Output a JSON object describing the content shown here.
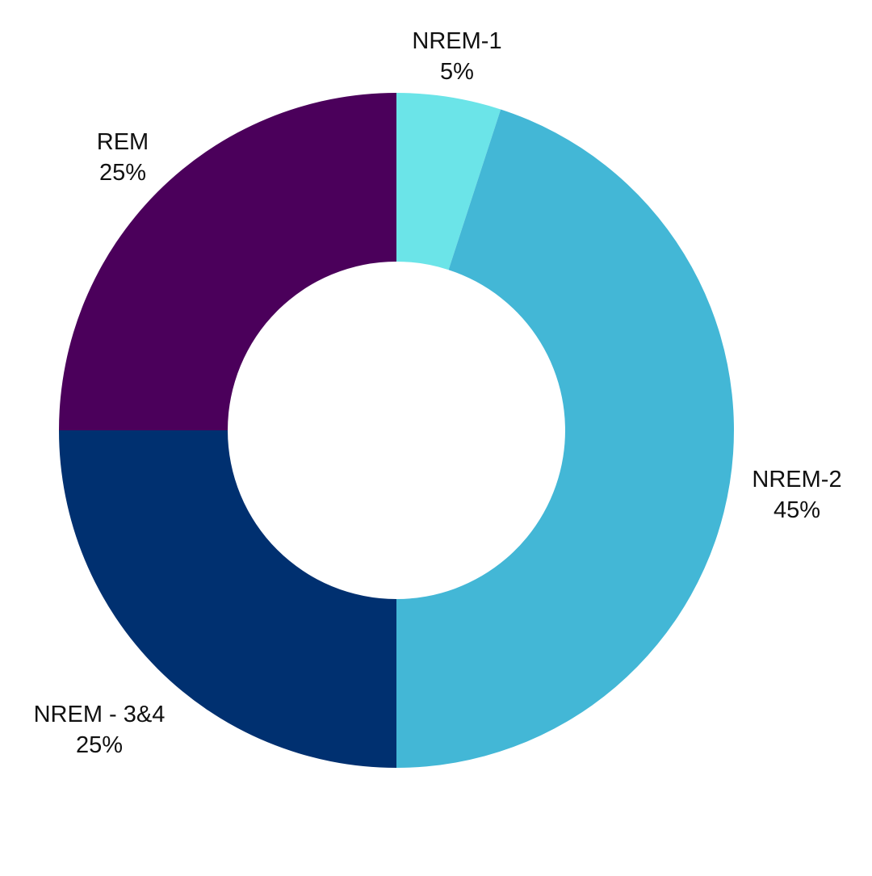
{
  "chart_data": {
    "type": "pie",
    "donut": true,
    "start_angle": "12 o'clock, clockwise",
    "legend": "none",
    "slices": [
      {
        "label": "NREM-1",
        "value": 5,
        "value_label": "5%",
        "color": "#6be4e8"
      },
      {
        "label": "NREM-2",
        "value": 45,
        "value_label": "45%",
        "color": "#43b7d6"
      },
      {
        "label": "NREM - 3&4",
        "value": 25,
        "value_label": "25%",
        "color": "#003070"
      },
      {
        "label": "REM",
        "value": 25,
        "value_label": "25%",
        "color": "#4b005b"
      }
    ]
  }
}
